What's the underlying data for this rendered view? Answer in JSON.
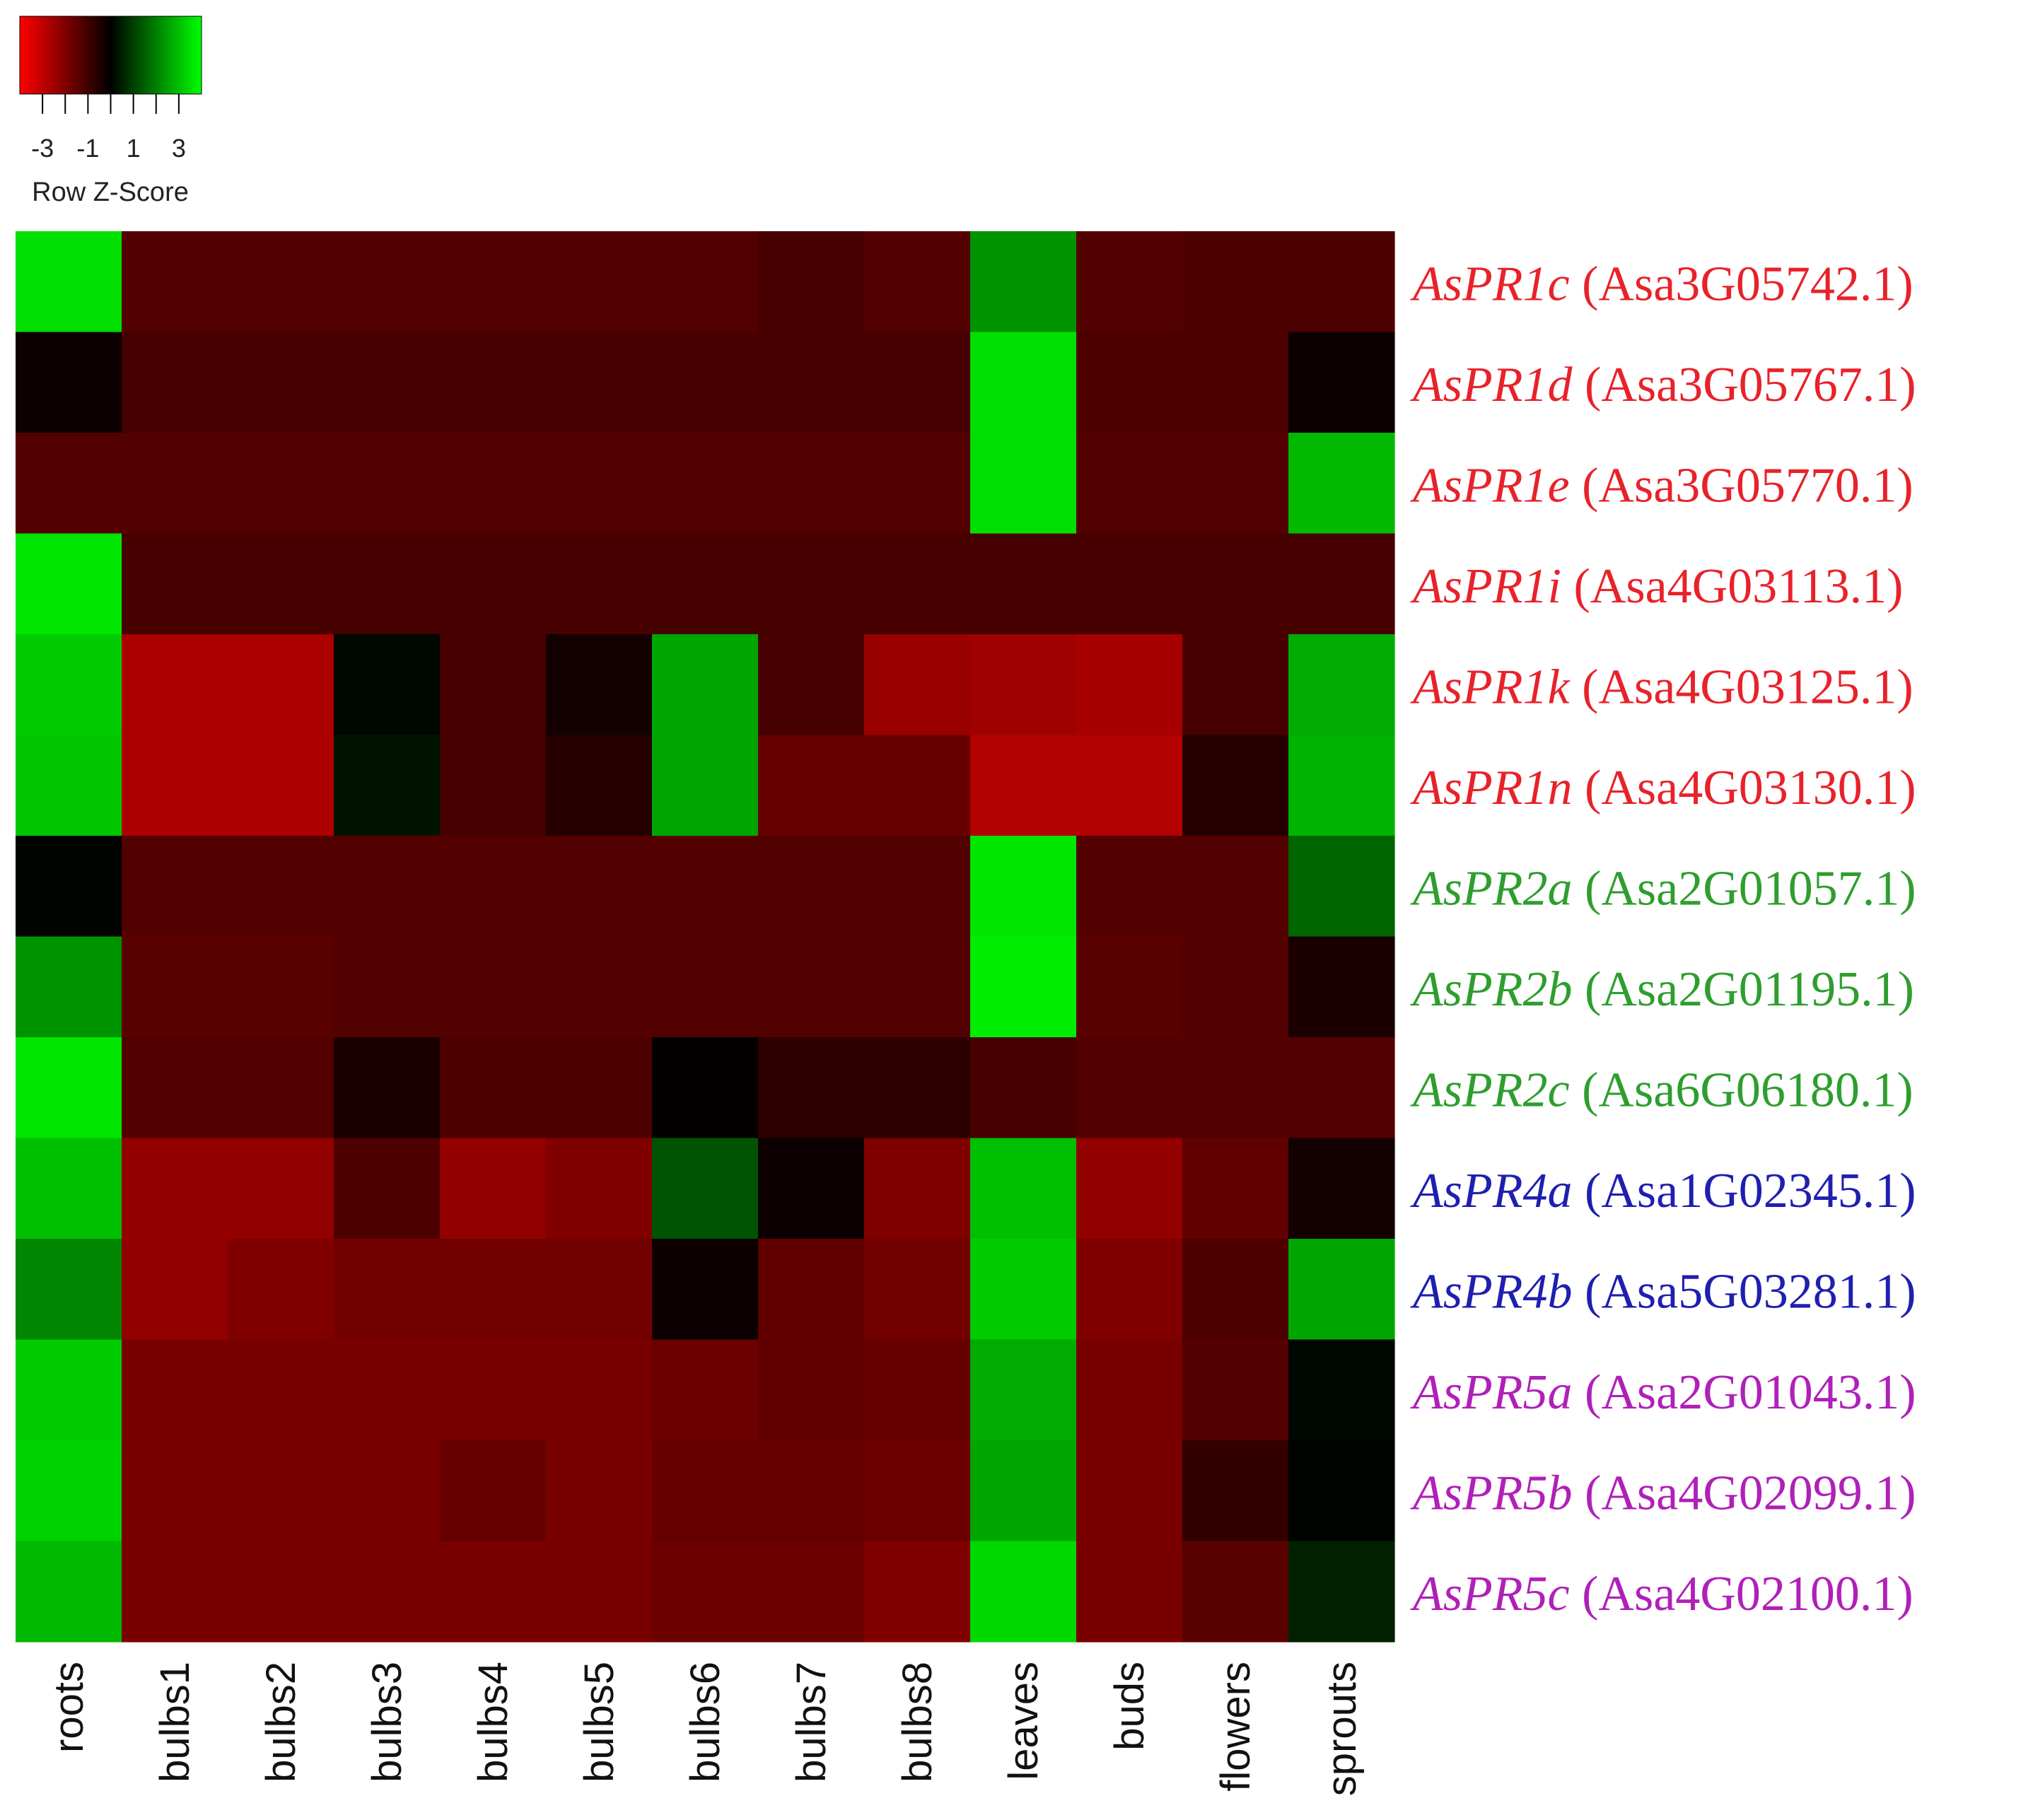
{
  "chart_data": {
    "type": "heatmap",
    "legend": {
      "title": "Row Z-Score",
      "ticks": [
        -3,
        -1,
        1,
        3
      ],
      "range": [
        -4,
        4
      ],
      "colors": {
        "low": "#ff0000",
        "mid": "#000000",
        "high": "#00ff00"
      }
    },
    "columns": [
      "roots",
      "bulbs1",
      "bulbs2",
      "bulbs3",
      "bulbs4",
      "bulbs5",
      "bulbs6",
      "bulbs7",
      "bulbs8",
      "leaves",
      "buds",
      "flowers",
      "sprouts"
    ],
    "rows": [
      {
        "gene": "AsPR1c",
        "id": "(Asa3G05742.1)",
        "color": "#e8222a",
        "values": [
          3.5,
          -1.3,
          -1.3,
          -1.3,
          -1.3,
          -1.3,
          -1.3,
          -1.1,
          -1.3,
          2.3,
          -1.3,
          -1.2,
          -1.2
        ]
      },
      {
        "gene": "AsPR1d",
        "id": "(Asa3G05767.1)",
        "color": "#e8222a",
        "values": [
          -0.2,
          -1.1,
          -1.1,
          -1.1,
          -1.1,
          -1.1,
          -1.1,
          -1.1,
          -1.1,
          3.5,
          -1.2,
          -1.2,
          -0.2
        ]
      },
      {
        "gene": "AsPR1e",
        "id": "(Asa3G05770.1)",
        "color": "#e8222a",
        "values": [
          -1.3,
          -1.3,
          -1.3,
          -1.3,
          -1.3,
          -1.3,
          -1.3,
          -1.3,
          -1.3,
          3.5,
          -1.3,
          -1.3,
          2.9
        ]
      },
      {
        "gene": "AsPR1i",
        "id": "(Asa4G03113.1)",
        "color": "#e8222a",
        "values": [
          3.6,
          -1.1,
          -1.1,
          -1.1,
          -1.1,
          -1.1,
          -1.1,
          -1.1,
          -1.1,
          -1.1,
          -1.1,
          -1.1,
          -1.1
        ]
      },
      {
        "gene": "AsPR1k",
        "id": "(Asa4G03125.1)",
        "color": "#e8222a",
        "values": [
          3.2,
          -2.7,
          -2.7,
          0.1,
          -1.1,
          -0.3,
          2.6,
          -1.1,
          -2.4,
          -2.5,
          -2.6,
          -1.1,
          2.7
        ]
      },
      {
        "gene": "AsPR1n",
        "id": "(Asa4G03130.1)",
        "color": "#e8222a",
        "values": [
          3.1,
          -2.7,
          -2.7,
          0.3,
          -1.1,
          -0.6,
          2.6,
          -1.6,
          -1.6,
          -2.8,
          -2.8,
          -0.6,
          2.8
        ]
      },
      {
        "gene": "AsPR2a",
        "id": "(Asa2G01057.1)",
        "color": "#2e9e2e",
        "values": [
          0.05,
          -1.3,
          -1.3,
          -1.3,
          -1.3,
          -1.3,
          -1.3,
          -1.3,
          -1.3,
          3.6,
          -1.3,
          -1.3,
          1.6
        ]
      },
      {
        "gene": "AsPR2b",
        "id": "(Asa2G01195.1)",
        "color": "#2e9e2e",
        "values": [
          2.3,
          -1.4,
          -1.4,
          -1.3,
          -1.3,
          -1.3,
          -1.3,
          -1.3,
          -1.3,
          3.7,
          -1.4,
          -1.3,
          -0.4
        ]
      },
      {
        "gene": "AsPR2c",
        "id": "(Asa6G06180.1)",
        "color": "#2e9e2e",
        "values": [
          3.6,
          -1.3,
          -1.3,
          -0.4,
          -1.2,
          -1.2,
          -0.05,
          -0.7,
          -0.7,
          -1.1,
          -1.3,
          -1.3,
          -1.3
        ]
      },
      {
        "gene": "AsPR4a",
        "id": "(Asa1G02345.1)",
        "color": "#1f1fb0",
        "values": [
          3.0,
          -2.3,
          -2.3,
          -1.2,
          -2.3,
          -2.0,
          1.3,
          -0.2,
          -2.0,
          3.0,
          -2.3,
          -1.5,
          -0.3
        ]
      },
      {
        "gene": "AsPR4b",
        "id": "(Asa5G03281.1)",
        "color": "#1f1fb0",
        "values": [
          2.1,
          -2.3,
          -2.0,
          -1.8,
          -1.8,
          -1.8,
          -0.2,
          -1.5,
          -1.8,
          3.2,
          -2.0,
          -1.2,
          2.6
        ]
      },
      {
        "gene": "AsPR5a",
        "id": "(Asa2G01043.1)",
        "color": "#b020b8",
        "values": [
          3.2,
          -1.9,
          -1.9,
          -1.9,
          -1.9,
          -1.9,
          -1.7,
          -1.5,
          -1.6,
          2.7,
          -1.9,
          -1.3,
          0.1
        ]
      },
      {
        "gene": "AsPR5b",
        "id": "(Asa4G02099.1)",
        "color": "#b020b8",
        "values": [
          3.3,
          -1.9,
          -1.9,
          -1.9,
          -1.6,
          -1.9,
          -1.6,
          -1.6,
          -1.7,
          2.6,
          -1.9,
          -0.8,
          0.05
        ]
      },
      {
        "gene": "AsPR5c",
        "id": "(Asa4G02100.1)",
        "color": "#b020b8",
        "values": [
          2.9,
          -1.9,
          -1.9,
          -1.9,
          -1.9,
          -1.9,
          -1.7,
          -1.7,
          -2.0,
          3.4,
          -1.9,
          -1.4,
          0.5
        ]
      }
    ]
  }
}
